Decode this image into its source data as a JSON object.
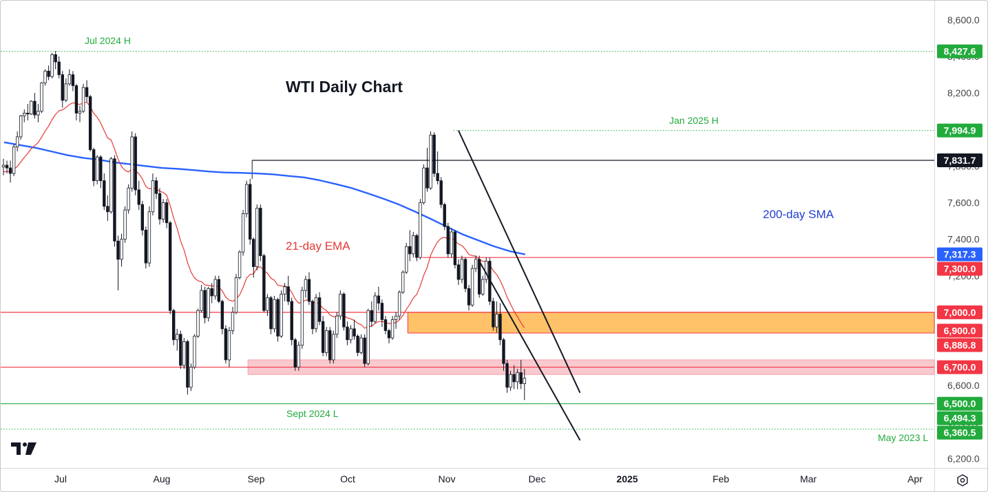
{
  "chart_data": {
    "type": "candlestick",
    "title": "WTI Daily Chart",
    "xlabel": "",
    "ylabel": "",
    "ylim": [
      6150,
      8700
    ],
    "x_ticks": [
      {
        "label": "Jul",
        "bold": false
      },
      {
        "label": "Aug",
        "bold": false
      },
      {
        "label": "Sep",
        "bold": false
      },
      {
        "label": "Oct",
        "bold": false
      },
      {
        "label": "Nov",
        "bold": false
      },
      {
        "label": "Dec",
        "bold": false
      },
      {
        "label": "2025",
        "bold": true
      },
      {
        "label": "Feb",
        "bold": false
      },
      {
        "label": "Mar",
        "bold": false
      },
      {
        "label": "Apr",
        "bold": false
      }
    ],
    "y_ticks": [
      "6,200.0",
      "6,400.0",
      "6,600.0",
      "7,000.0",
      "7,200.0",
      "7,400.0",
      "7,600.0",
      "7,800.0",
      "8,000.0",
      "8,200.0",
      "8,400.0",
      "8,600.0"
    ],
    "y_tick_values": [
      6200,
      6400,
      6600,
      7000,
      7200,
      7400,
      7600,
      7800,
      8000,
      8200,
      8400,
      8600
    ],
    "price_tags": [
      {
        "label": "8,427.6",
        "value": 8427.6,
        "bg": "#22ab3c",
        "fg": "#ffffff"
      },
      {
        "label": "7,994.9",
        "value": 7994.9,
        "bg": "#22ab3c",
        "fg": "#ffffff"
      },
      {
        "label": "7,831.7",
        "value": 7831.7,
        "bg": "#131722",
        "fg": "#ffffff"
      },
      {
        "label": "7,317.3",
        "value": 7317.3,
        "bg": "#2962ff",
        "fg": "#ffffff"
      },
      {
        "label": "7,300.0",
        "value": 7300.0,
        "bg": "#f23645",
        "fg": "#ffffff"
      },
      {
        "label": "7,000.0",
        "value": 7000.0,
        "bg": "#f23645",
        "fg": "#ffffff"
      },
      {
        "label": "6,900.0",
        "value": 6900.0,
        "bg": "#f23645",
        "fg": "#ffffff"
      },
      {
        "label": "6,886.8",
        "value": 6886.8,
        "bg": "#f23645",
        "fg": "#ffffff"
      },
      {
        "label": "6,700.0",
        "value": 6700.0,
        "bg": "#f23645",
        "fg": "#ffffff"
      },
      {
        "label": "6,500.0",
        "value": 6500.0,
        "bg": "#22ab3c",
        "fg": "#ffffff"
      },
      {
        "label": "6,494.3",
        "value": 6494.3,
        "bg": "#22ab3c",
        "fg": "#ffffff"
      },
      {
        "label": "6,360.5",
        "value": 6360.5,
        "bg": "#22ab3c",
        "fg": "#ffffff"
      }
    ],
    "horizontal_lines": [
      {
        "value": 8427.6,
        "color": "#22ab3c",
        "style": "dotted",
        "from_bar": 0,
        "note": "Jul 2024 H"
      },
      {
        "value": 7994.9,
        "color": "#22ab3c",
        "style": "dotted",
        "from_bar": 130
      },
      {
        "value": 7831.7,
        "color": "#131722",
        "style": "solid",
        "from_bar": 72
      },
      {
        "value": 7300.0,
        "color": "#f23645",
        "style": "solid",
        "from_bar": 121
      },
      {
        "value": 7000.0,
        "color": "#f23645",
        "style": "solid",
        "from_bar": 0
      },
      {
        "value": 6700.0,
        "color": "#f23645",
        "style": "solid",
        "from_bar": 0
      },
      {
        "value": 6500.0,
        "color": "#22ab3c",
        "style": "solid",
        "from_bar": 0
      },
      {
        "value": 6360.5,
        "color": "#22ab3c",
        "style": "dotted",
        "from_bar": 0
      }
    ],
    "zones": [
      {
        "low": 6886.8,
        "high": 7000.0,
        "from_bar": 117,
        "fill": "#ffb74d",
        "border": "#f23645"
      },
      {
        "low": 6660.0,
        "high": 6740.0,
        "from_bar": 71,
        "fill": "#f7c0c5",
        "border": "#f7a1a9"
      }
    ],
    "annotations": [
      {
        "text": "Jul 2024 H",
        "color": "#22ab3c"
      },
      {
        "text": "Jan 2025 H",
        "color": "#22ab3c"
      },
      {
        "text": "Sept 2024 L",
        "color": "#22ab3c"
      },
      {
        "text": "May 2023 L",
        "color": "#22ab3c"
      },
      {
        "text": "21-day EMA",
        "color": "#e53935"
      },
      {
        "text": "200-day SMA",
        "color": "#1e3fd0"
      }
    ],
    "series": [
      {
        "name": "21-day EMA",
        "color": "#e53935"
      },
      {
        "name": "200-day SMA",
        "color": "#2962ff",
        "values": [
          7930,
          7915,
          7900,
          7880,
          7860,
          7845,
          7835,
          7820,
          7810,
          7800,
          7790,
          7785,
          7778,
          7770,
          7765,
          7763,
          7760,
          7755,
          7746,
          7738,
          7722,
          7702,
          7680,
          7652,
          7622,
          7590,
          7552,
          7512,
          7470,
          7428,
          7395,
          7362,
          7335,
          7317
        ]
      }
    ],
    "channel_lines": [
      {
        "from": [
          131,
          7994.9
        ],
        "to": [
          166,
          6560
        ]
      },
      {
        "from": [
          137,
          7280
        ],
        "to": [
          166,
          6300
        ]
      }
    ],
    "candles": [
      [
        7795,
        7840,
        7750,
        7805
      ],
      [
        7805,
        7830,
        7760,
        7790
      ],
      [
        7790,
        7830,
        7710,
        7760
      ],
      [
        7760,
        7920,
        7745,
        7905
      ],
      [
        7905,
        7990,
        7880,
        7960
      ],
      [
        7960,
        8080,
        7945,
        8075
      ],
      [
        8075,
        8110,
        8040,
        8090
      ],
      [
        8090,
        8140,
        8050,
        8085
      ],
      [
        8085,
        8160,
        8080,
        8155
      ],
      [
        8155,
        8200,
        8060,
        8080
      ],
      [
        8080,
        8140,
        8040,
        8100
      ],
      [
        8100,
        8260,
        8090,
        8255
      ],
      [
        8255,
        8330,
        8240,
        8320
      ],
      [
        8320,
        8350,
        8270,
        8290
      ],
      [
        8290,
        8420,
        8280,
        8410
      ],
      [
        8410,
        8430,
        8330,
        8370
      ],
      [
        8370,
        8400,
        8280,
        8300
      ],
      [
        8300,
        8320,
        8120,
        8160
      ],
      [
        8160,
        8280,
        8150,
        8250
      ],
      [
        8250,
        8330,
        8240,
        8300
      ],
      [
        8300,
        8320,
        8210,
        8240
      ],
      [
        8240,
        8250,
        8050,
        8090
      ],
      [
        8090,
        8130,
        8040,
        8100
      ],
      [
        8100,
        8250,
        8090,
        8230
      ],
      [
        8230,
        8270,
        8150,
        8180
      ],
      [
        8180,
        8190,
        7880,
        7890
      ],
      [
        7890,
        7900,
        7690,
        7720
      ],
      [
        7720,
        7860,
        7700,
        7850
      ],
      [
        7850,
        7860,
        7680,
        7720
      ],
      [
        7720,
        7760,
        7560,
        7580
      ],
      [
        7580,
        7640,
        7500,
        7550
      ],
      [
        7550,
        7850,
        7540,
        7840
      ],
      [
        7840,
        7860,
        7360,
        7390
      ],
      [
        7390,
        7420,
        7120,
        7290
      ],
      [
        7290,
        7430,
        7250,
        7400
      ],
      [
        7400,
        7580,
        7380,
        7560
      ],
      [
        7560,
        7700,
        7540,
        7680
      ],
      [
        7680,
        7990,
        7660,
        7960
      ],
      [
        7960,
        7980,
        7640,
        7670
      ],
      [
        7670,
        7720,
        7560,
        7590
      ],
      [
        7590,
        7610,
        7420,
        7450
      ],
      [
        7450,
        7470,
        7240,
        7270
      ],
      [
        7270,
        7580,
        7250,
        7550
      ],
      [
        7550,
        7760,
        7530,
        7720
      ],
      [
        7720,
        7740,
        7620,
        7650
      ],
      [
        7650,
        7680,
        7480,
        7510
      ],
      [
        7510,
        7620,
        7490,
        7600
      ],
      [
        7600,
        7620,
        7460,
        7490
      ],
      [
        7490,
        7500,
        6990,
        7010
      ],
      [
        7010,
        7020,
        6820,
        6850
      ],
      [
        6850,
        6910,
        6790,
        6880
      ],
      [
        6880,
        6900,
        6690,
        6710
      ],
      [
        6710,
        6860,
        6690,
        6840
      ],
      [
        6840,
        6850,
        6550,
        6590
      ],
      [
        6590,
        6720,
        6570,
        6700
      ],
      [
        6700,
        6880,
        6690,
        6870
      ],
      [
        6870,
        7020,
        6860,
        7010
      ],
      [
        7010,
        7150,
        7000,
        7120
      ],
      [
        7120,
        7140,
        6940,
        6970
      ],
      [
        6970,
        7140,
        6950,
        7130
      ],
      [
        7130,
        7160,
        7050,
        7090
      ],
      [
        7090,
        7200,
        7070,
        7180
      ],
      [
        7180,
        7200,
        7050,
        7060
      ],
      [
        7060,
        7070,
        6880,
        6910
      ],
      [
        6910,
        6930,
        6720,
        6740
      ],
      [
        6740,
        6920,
        6700,
        6900
      ],
      [
        6900,
        7030,
        6880,
        7000
      ],
      [
        7000,
        7210,
        6990,
        7190
      ],
      [
        7190,
        7340,
        7180,
        7330
      ],
      [
        7330,
        7560,
        7310,
        7540
      ],
      [
        7540,
        7720,
        7520,
        7700
      ],
      [
        7700,
        7730,
        7370,
        7400
      ],
      [
        7400,
        7410,
        7190,
        7250
      ],
      [
        7250,
        7590,
        7230,
        7570
      ],
      [
        7570,
        7590,
        7280,
        7310
      ],
      [
        7310,
        7320,
        7000,
        7010
      ],
      [
        7010,
        7100,
        6980,
        7080
      ],
      [
        7080,
        7090,
        6880,
        6910
      ],
      [
        6910,
        7090,
        6890,
        7070
      ],
      [
        7070,
        7080,
        6840,
        6870
      ],
      [
        6870,
        7120,
        6860,
        7100
      ],
      [
        7100,
        7160,
        7060,
        7140
      ],
      [
        7140,
        7200,
        7040,
        7060
      ],
      [
        7060,
        7080,
        6820,
        6850
      ],
      [
        6850,
        6860,
        6680,
        6700
      ],
      [
        6700,
        6840,
        6680,
        6820
      ],
      [
        6820,
        7140,
        6800,
        7120
      ],
      [
        7120,
        7200,
        7080,
        7180
      ],
      [
        7180,
        7220,
        7040,
        7060
      ],
      [
        7060,
        7070,
        6880,
        6910
      ],
      [
        6910,
        7100,
        6890,
        7080
      ],
      [
        7080,
        7110,
        6930,
        6950
      ],
      [
        6950,
        6980,
        6760,
        6780
      ],
      [
        6780,
        6920,
        6760,
        6900
      ],
      [
        6900,
        6920,
        6720,
        6740
      ],
      [
        6740,
        6900,
        6720,
        6880
      ],
      [
        6880,
        7000,
        6860,
        6980
      ],
      [
        6980,
        7120,
        6960,
        7100
      ],
      [
        7100,
        7110,
        6900,
        6920
      ],
      [
        6920,
        6950,
        6820,
        6850
      ],
      [
        6850,
        6930,
        6830,
        6910
      ],
      [
        6910,
        6960,
        6850,
        6870
      ],
      [
        6870,
        6880,
        6760,
        6780
      ],
      [
        6780,
        6880,
        6770,
        6860
      ],
      [
        6860,
        6880,
        6700,
        6720
      ],
      [
        6720,
        7020,
        6710,
        7010
      ],
      [
        7010,
        7060,
        6920,
        6950
      ],
      [
        6950,
        7110,
        6940,
        7090
      ],
      [
        7090,
        7140,
        7010,
        7050
      ],
      [
        7050,
        7070,
        6920,
        6960
      ],
      [
        6960,
        6980,
        6880,
        6900
      ],
      [
        6900,
        6910,
        6830,
        6860
      ],
      [
        6860,
        6980,
        6850,
        6960
      ],
      [
        6960,
        7000,
        6910,
        6980
      ],
      [
        6980,
        7120,
        6960,
        7110
      ],
      [
        7110,
        7230,
        7100,
        7220
      ],
      [
        7220,
        7380,
        7210,
        7360
      ],
      [
        7360,
        7450,
        7280,
        7320
      ],
      [
        7320,
        7440,
        7300,
        7420
      ],
      [
        7420,
        7430,
        7280,
        7300
      ],
      [
        7300,
        7620,
        7290,
        7600
      ],
      [
        7600,
        7810,
        7590,
        7790
      ],
      [
        7790,
        7900,
        7660,
        7680
      ],
      [
        7680,
        7990,
        7670,
        7970
      ],
      [
        7970,
        7985,
        7740,
        7760
      ],
      [
        7760,
        7880,
        7700,
        7720
      ],
      [
        7720,
        7740,
        7570,
        7590
      ],
      [
        7590,
        7600,
        7450,
        7470
      ],
      [
        7470,
        7490,
        7300,
        7320
      ],
      [
        7320,
        7460,
        7300,
        7440
      ],
      [
        7440,
        7450,
        7240,
        7260
      ],
      [
        7260,
        7290,
        7150,
        7180
      ],
      [
        7180,
        7310,
        7160,
        7290
      ],
      [
        7290,
        7300,
        7110,
        7130
      ],
      [
        7130,
        7150,
        7010,
        7040
      ],
      [
        7040,
        7260,
        7030,
        7240
      ],
      [
        7240,
        7310,
        7220,
        7290
      ],
      [
        7290,
        7310,
        7080,
        7100
      ],
      [
        7100,
        7200,
        7090,
        7180
      ],
      [
        7180,
        7300,
        7160,
        7280
      ],
      [
        7280,
        7300,
        7040,
        7060
      ],
      [
        7060,
        7080,
        6900,
        6920
      ],
      [
        6920,
        7060,
        6890,
        6990
      ],
      [
        6990,
        7050,
        6820,
        6850
      ],
      [
        6850,
        6860,
        6680,
        6720
      ],
      [
        6720,
        6740,
        6560,
        6590
      ],
      [
        6590,
        6680,
        6570,
        6660
      ],
      [
        6660,
        6710,
        6580,
        6620
      ],
      [
        6620,
        6690,
        6580,
        6670
      ],
      [
        6670,
        6740,
        6580,
        6610
      ],
      [
        6610,
        6690,
        6520,
        6640
      ]
    ]
  }
}
